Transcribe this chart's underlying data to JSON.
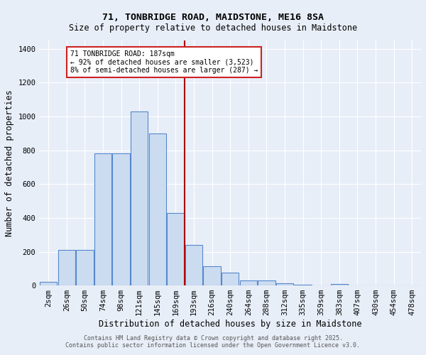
{
  "title1": "71, TONBRIDGE ROAD, MAIDSTONE, ME16 8SA",
  "title2": "Size of property relative to detached houses in Maidstone",
  "xlabel": "Distribution of detached houses by size in Maidstone",
  "ylabel": "Number of detached properties",
  "bar_labels": [
    "2sqm",
    "26sqm",
    "50sqm",
    "74sqm",
    "98sqm",
    "121sqm",
    "145sqm",
    "169sqm",
    "193sqm",
    "216sqm",
    "240sqm",
    "264sqm",
    "288sqm",
    "312sqm",
    "335sqm",
    "359sqm",
    "383sqm",
    "407sqm",
    "430sqm",
    "454sqm",
    "478sqm"
  ],
  "bar_values": [
    20,
    210,
    210,
    780,
    780,
    1030,
    900,
    430,
    240,
    115,
    75,
    30,
    30,
    15,
    5,
    0,
    10,
    0,
    0,
    0,
    0
  ],
  "bar_color": "#ccdcf0",
  "bar_edge_color": "#5588cc",
  "vline_color": "#aa0000",
  "vline_x_idx": 8,
  "annotation_text": "71 TONBRIDGE ROAD: 187sqm\n← 92% of detached houses are smaller (3,523)\n8% of semi-detached houses are larger (287) →",
  "annotation_box_color": "white",
  "annotation_box_edge": "#cc2222",
  "ylim": [
    0,
    1450
  ],
  "yticks": [
    0,
    200,
    400,
    600,
    800,
    1000,
    1200,
    1400
  ],
  "footer1": "Contains HM Land Registry data © Crown copyright and database right 2025.",
  "footer2": "Contains public sector information licensed under the Open Government Licence v3.0.",
  "bg_color": "#e8eef8",
  "plot_bg_color": "#e8eef8",
  "grid_color": "#ffffff",
  "title1_fontsize": 9.5,
  "title2_fontsize": 8.5,
  "xlabel_fontsize": 8.5,
  "ylabel_fontsize": 8.5,
  "tick_fontsize": 7.5,
  "annot_fontsize": 7,
  "footer_fontsize": 6
}
